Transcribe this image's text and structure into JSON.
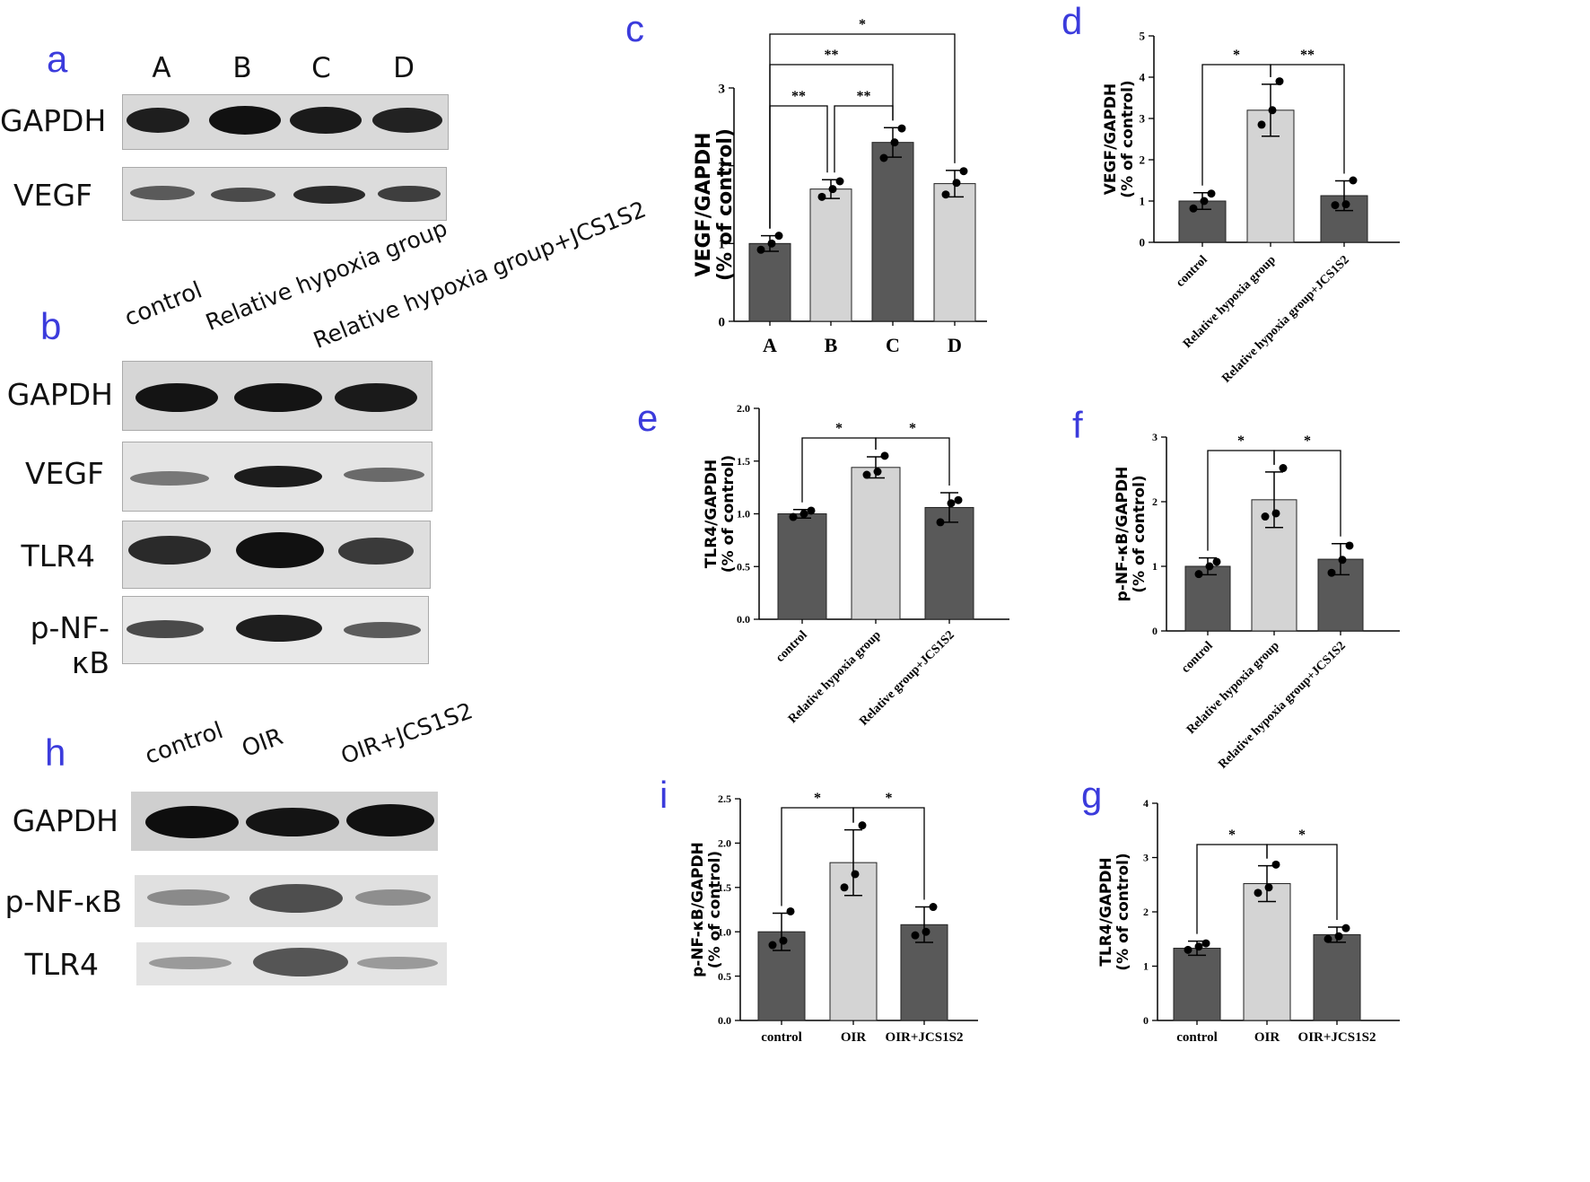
{
  "panel_letters": {
    "a": "a",
    "b": "b",
    "c": "c",
    "d": "d",
    "e": "e",
    "f": "f",
    "g": "g",
    "h": "h",
    "i": "i"
  },
  "blots": {
    "a": {
      "lanes": [
        "A",
        "B",
        "C",
        "D"
      ],
      "rows": [
        "GAPDH",
        "VEGF"
      ]
    },
    "b": {
      "lanes": [
        "control",
        "Relative hypoxia group",
        "Relative hypoxia group+JCS1S2"
      ],
      "rows": [
        "GAPDH",
        "VEGF",
        "TLR4",
        "p-NF-κB"
      ]
    },
    "h": {
      "lanes": [
        "control",
        "OIR",
        "OIR+JCS1S2"
      ],
      "rows": [
        "GAPDH",
        "p-NF-κB",
        "TLR4"
      ]
    }
  },
  "colors": {
    "dark_bar": "#595959",
    "light_bar": "#d4d4d4",
    "panel_letter": "#3b3bdc"
  },
  "chart_data": [
    {
      "id": "c",
      "type": "bar",
      "categories": [
        "A",
        "B",
        "C",
        "D"
      ],
      "values": [
        1.0,
        1.7,
        2.3,
        1.77
      ],
      "errors": [
        0.1,
        0.12,
        0.19,
        0.17
      ],
      "points": [
        [
          0.92,
          1.0,
          1.1
        ],
        [
          1.6,
          1.7,
          1.8
        ],
        [
          2.1,
          2.3,
          2.48
        ],
        [
          1.63,
          1.78,
          1.93
        ]
      ],
      "bar_shades": [
        "dark",
        "light",
        "dark",
        "light"
      ],
      "ylabel": "VEGF/GAPDH\n(% of control)",
      "ylim": [
        0,
        3
      ],
      "yticks": [
        "0",
        "1",
        "2",
        "3"
      ],
      "significance": [
        {
          "from": 0,
          "to": 1,
          "label": "**"
        },
        {
          "from": 1,
          "to": 2,
          "label": "**"
        },
        {
          "from": 0,
          "to": 2,
          "label": "**"
        },
        {
          "from": 0,
          "to": 3,
          "label": "*"
        }
      ]
    },
    {
      "id": "d",
      "type": "bar",
      "categories": [
        "control",
        "Relative hypoxia group",
        "Relative hypoxia group+JCS1S2"
      ],
      "values": [
        1.0,
        3.2,
        1.13
      ],
      "errors": [
        0.2,
        0.63,
        0.36
      ],
      "points": [
        [
          0.82,
          1.0,
          1.18
        ],
        [
          2.85,
          3.2,
          3.9
        ],
        [
          0.9,
          0.92,
          1.5
        ]
      ],
      "bar_shades": [
        "dark",
        "light",
        "dark"
      ],
      "ylabel": "VEGF/GAPDH\n(% of control)",
      "ylim": [
        0,
        5
      ],
      "yticks": [
        "0",
        "1",
        "2",
        "3",
        "4",
        "5"
      ],
      "significance": [
        {
          "from": 0,
          "to": 1,
          "label": "*"
        },
        {
          "from": 1,
          "to": 2,
          "label": "**"
        }
      ]
    },
    {
      "id": "e",
      "type": "bar",
      "categories": [
        "control",
        "Relative hypoxia group",
        "Relative group+JCS1S2"
      ],
      "values": [
        1.0,
        1.44,
        1.06
      ],
      "errors": [
        0.04,
        0.1,
        0.14
      ],
      "points": [
        [
          0.97,
          1.0,
          1.03
        ],
        [
          1.37,
          1.4,
          1.55
        ],
        [
          0.92,
          1.1,
          1.13
        ]
      ],
      "bar_shades": [
        "dark",
        "light",
        "dark"
      ],
      "ylabel": "TLR4/GAPDH\n(% of control)",
      "ylim": [
        0,
        2.0
      ],
      "yticks": [
        "0.0",
        "0.5",
        "1.0",
        "1.5",
        "2.0"
      ],
      "significance": [
        {
          "from": 0,
          "to": 1,
          "label": "*"
        },
        {
          "from": 1,
          "to": 2,
          "label": "*"
        }
      ]
    },
    {
      "id": "f",
      "type": "bar",
      "categories": [
        "control",
        "Relative hypoxia group",
        "Relative hypoxia group+JCS1S2"
      ],
      "values": [
        1.0,
        2.03,
        1.11
      ],
      "errors": [
        0.13,
        0.43,
        0.24
      ],
      "points": [
        [
          0.88,
          1.0,
          1.07
        ],
        [
          1.77,
          1.82,
          2.52
        ],
        [
          0.9,
          1.1,
          1.32
        ]
      ],
      "bar_shades": [
        "dark",
        "light",
        "dark"
      ],
      "ylabel": "p-NF-κB/GAPDH\n(% of control)",
      "ylim": [
        0,
        3
      ],
      "yticks": [
        "0",
        "1",
        "2",
        "3"
      ],
      "significance": [
        {
          "from": 0,
          "to": 1,
          "label": "*"
        },
        {
          "from": 1,
          "to": 2,
          "label": "*"
        }
      ]
    },
    {
      "id": "i",
      "type": "bar",
      "categories": [
        "control",
        "OIR",
        "OIR+JCS1S2"
      ],
      "values": [
        1.0,
        1.78,
        1.08
      ],
      "errors": [
        0.21,
        0.37,
        0.2
      ],
      "points": [
        [
          0.85,
          0.9,
          1.23
        ],
        [
          1.5,
          1.65,
          2.2
        ],
        [
          0.96,
          1.0,
          1.28
        ]
      ],
      "bar_shades": [
        "dark",
        "light",
        "dark"
      ],
      "ylabel": "p-NF-κB/GAPDH\n(% of control)",
      "ylim": [
        0,
        2.5
      ],
      "yticks": [
        "0.0",
        "0.5",
        "1.0",
        "1.5",
        "2.0",
        "2.5"
      ],
      "significance": [
        {
          "from": 0,
          "to": 1,
          "label": "*"
        },
        {
          "from": 1,
          "to": 2,
          "label": "*"
        }
      ]
    },
    {
      "id": "g",
      "type": "bar",
      "categories": [
        "control",
        "OIR",
        "OIR+JCS1S2"
      ],
      "values": [
        1.33,
        2.52,
        1.58
      ],
      "errors": [
        0.13,
        0.33,
        0.14
      ],
      "points": [
        [
          1.3,
          1.36,
          1.42
        ],
        [
          2.35,
          2.45,
          2.87
        ],
        [
          1.5,
          1.55,
          1.7
        ]
      ],
      "bar_shades": [
        "dark",
        "light",
        "dark"
      ],
      "ylabel": "TLR4/GAPDH\n(% of control)",
      "ylim": [
        0,
        4
      ],
      "yticks": [
        "0",
        "1",
        "2",
        "3",
        "4"
      ],
      "significance": [
        {
          "from": 0,
          "to": 1,
          "label": "*"
        },
        {
          "from": 1,
          "to": 2,
          "label": "*"
        }
      ]
    }
  ]
}
